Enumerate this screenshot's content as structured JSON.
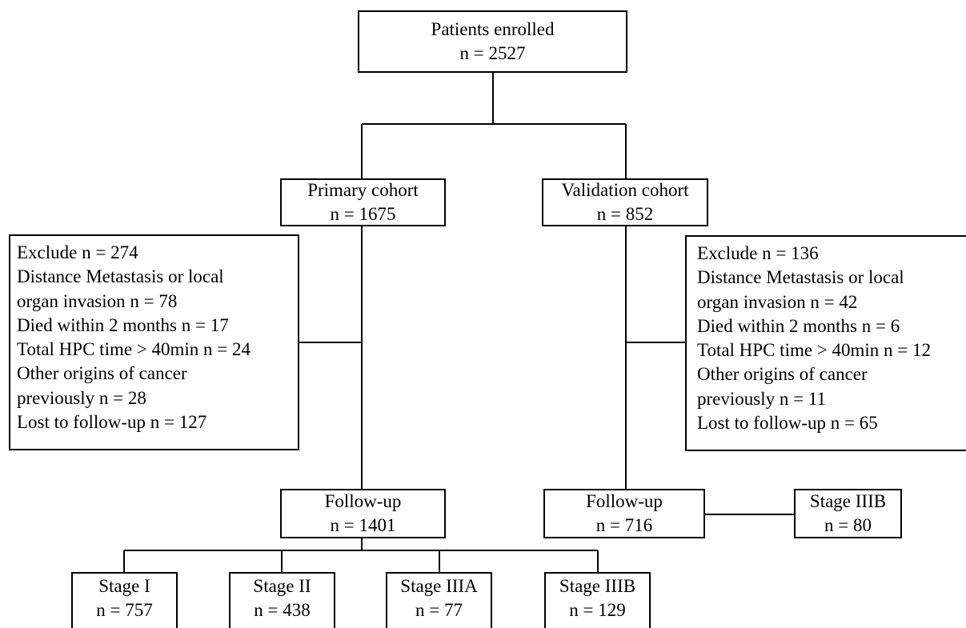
{
  "enrolled": {
    "title": "Patients enrolled",
    "count": "n = 2527"
  },
  "primary": {
    "title": "Primary cohort",
    "count": "n = 1675"
  },
  "validation": {
    "title": "Validation cohort",
    "count": "n = 852"
  },
  "primary_exclude": {
    "lines": [
      "Exclude n = 274",
      "Distance Metastasis or local",
      "organ invasion n = 78",
      "Died within 2 months n = 17",
      "Total HPC time > 40min n = 24",
      "Other origins of cancer",
      "previously n = 28",
      "Lost to follow-up n = 127"
    ]
  },
  "validation_exclude": {
    "lines": [
      "Exclude n = 136",
      "Distance Metastasis or local",
      "organ invasion n = 42",
      "Died within 2 months n = 6",
      "Total HPC time > 40min n = 12",
      "Other origins of cancer",
      "previously n = 11",
      "Lost to follow-up n = 65"
    ]
  },
  "primary_followup": {
    "title": "Follow-up",
    "count": "n = 1401"
  },
  "validation_followup": {
    "title": "Follow-up",
    "count": "n = 716"
  },
  "validation_stage": {
    "title": "Stage IIIB",
    "count": "n = 80"
  },
  "primary_stages": [
    {
      "title": "Stage I",
      "count": "n = 757"
    },
    {
      "title": "Stage II",
      "count": "n = 438"
    },
    {
      "title": "Stage IIIA",
      "count": "n = 77"
    },
    {
      "title": "Stage IIIB",
      "count": "n = 129"
    }
  ]
}
